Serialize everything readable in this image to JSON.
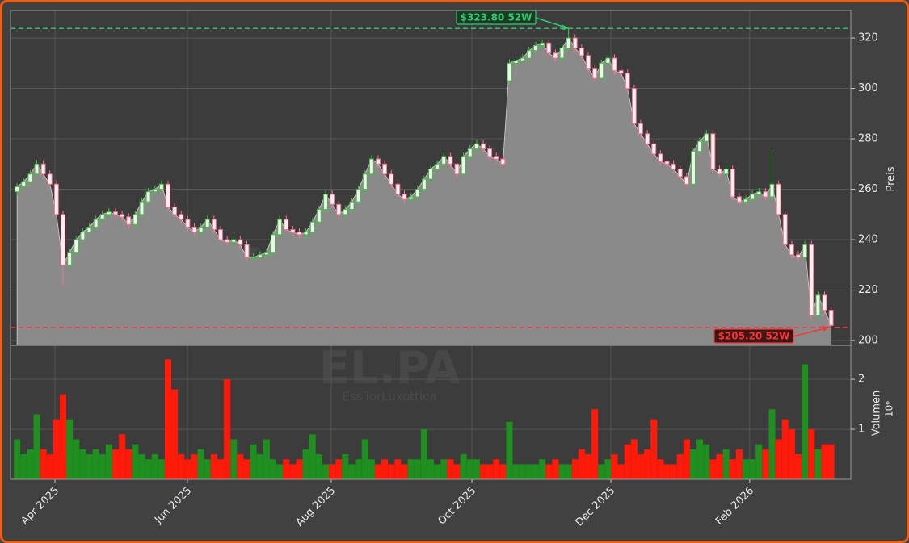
{
  "chart_data": {
    "type": "candlestick",
    "watermark": "forexsignale.trade",
    "ticker": "EL.PA",
    "company": "EssilorLuxottica",
    "ylabel": "Preis",
    "y2label": "Volumen",
    "y2_scale_label": "10⁶",
    "xlim": [
      -1,
      127
    ],
    "xticks": [
      {
        "value": 5.77,
        "label": "Apr 2025"
      },
      {
        "value": 25.95,
        "label": "Jun 2025"
      },
      {
        "value": 47.86,
        "label": "Aug 2025"
      },
      {
        "value": 69.28,
        "label": "Oct 2025"
      },
      {
        "value": 90.45,
        "label": "Dec 2025"
      },
      {
        "value": 111.6,
        "label": "Feb 2026"
      }
    ],
    "ylim": [
      198.1,
      330.9
    ],
    "yticks": [
      200,
      220,
      240,
      260,
      280,
      300,
      320
    ],
    "y2lim": [
      0,
      2.68
    ],
    "y2ticks": [
      1,
      2
    ],
    "grid": true,
    "up_color": "#3ec43e",
    "down_color": "#ff6f91",
    "volume_up_color": "#1f8f1f",
    "volume_down_color": "#ff1a0a",
    "area_color": "#8a8a8a",
    "annotations": [
      {
        "text": "$323.80 52W",
        "value": 323.8,
        "color": "#2ecc71"
      },
      {
        "text": "$205.20 52W",
        "value": 205.2,
        "color": "#ff3333"
      }
    ],
    "open": [
      259,
      261,
      263,
      266,
      270,
      266,
      262,
      250,
      230,
      235,
      240,
      243,
      245,
      248,
      250,
      251,
      250,
      249,
      246,
      250,
      255,
      259,
      260,
      262,
      253,
      250,
      248,
      245,
      243,
      245,
      248,
      244,
      240,
      239,
      240,
      238,
      233,
      233,
      234,
      235,
      242,
      248,
      244,
      243,
      242,
      243,
      247,
      252,
      258,
      254,
      250,
      252,
      255,
      260,
      266,
      272,
      270,
      266,
      262,
      258,
      256,
      257,
      260,
      264,
      268,
      270,
      273,
      270,
      266,
      273,
      276,
      278,
      276,
      273,
      272,
      303,
      310,
      311,
      312,
      315,
      317,
      318,
      314,
      312,
      316,
      320,
      316,
      313,
      308,
      304,
      310,
      312,
      307,
      306,
      300,
      286,
      282,
      278,
      274,
      271,
      270,
      268,
      265,
      262,
      275,
      279,
      282,
      268,
      266,
      268,
      257,
      255,
      256,
      258,
      259,
      257,
      262,
      250,
      238,
      234,
      233,
      238,
      210,
      218,
      212
    ],
    "high": [
      262.5,
      264.5,
      267.5,
      271.5,
      271.5,
      267.5,
      263.5,
      251.5,
      236.5,
      241.5,
      244.5,
      246.5,
      249.5,
      251.5,
      252.5,
      252.5,
      251.5,
      250.5,
      251.5,
      256.5,
      260.5,
      261.5,
      263.5,
      263.5,
      254.5,
      251.5,
      249.5,
      246.5,
      246.5,
      249.5,
      249.5,
      245.5,
      241.5,
      241.5,
      241.5,
      239.5,
      234.5,
      235.5,
      236.5,
      243.5,
      249.5,
      249.5,
      245.5,
      244.5,
      244.5,
      248.5,
      253.5,
      259.5,
      259.5,
      255.5,
      253.5,
      256.5,
      261.5,
      267.5,
      273.5,
      273.5,
      271.5,
      267.5,
      263.5,
      259.5,
      258.5,
      261.5,
      265.5,
      269.5,
      271.5,
      274.5,
      274.5,
      271.5,
      274.5,
      277.5,
      279.5,
      279.5,
      277.5,
      274.5,
      273.5,
      311.5,
      312.5,
      313.5,
      316.5,
      318.5,
      319.5,
      319.5,
      315.5,
      317.5,
      323.8,
      321.5,
      317.5,
      314.5,
      309.5,
      311.5,
      313.5,
      313.5,
      308.5,
      307.5,
      301.5,
      287.5,
      283.5,
      279.5,
      275.5,
      272.5,
      271.5,
      269.5,
      266.5,
      276.5,
      280.5,
      283.5,
      283.5,
      269.5,
      269.5,
      269.5,
      258.5,
      257.5,
      259.5,
      260.5,
      260.5,
      276,
      263.5,
      251.5,
      239.5,
      235.5,
      239.5,
      239.5,
      219.5,
      219.5,
      213.5
    ],
    "low": [
      257.5,
      259.5,
      261.5,
      264.5,
      264.5,
      260.5,
      248.5,
      222,
      228.5,
      233.5,
      238.5,
      241.5,
      243.5,
      246.5,
      248.5,
      248.5,
      247.5,
      244.5,
      244.5,
      248.5,
      253.5,
      257.5,
      258.5,
      251.5,
      248.5,
      246.5,
      243.5,
      241.5,
      241.5,
      243.5,
      242.5,
      238.5,
      237.5,
      237.5,
      236.5,
      231.5,
      231.5,
      231.5,
      232.5,
      233.5,
      240.5,
      242.5,
      241.5,
      240.5,
      240.5,
      241.5,
      245.5,
      250.5,
      252.5,
      248.5,
      248.5,
      250.5,
      253.5,
      258.5,
      264.5,
      268.5,
      264.5,
      260.5,
      256.5,
      254.5,
      254.5,
      255.5,
      258.5,
      262.5,
      266.5,
      268.5,
      268.5,
      264.5,
      264.5,
      271.5,
      274.5,
      274.5,
      271.5,
      270.5,
      268.5,
      301.5,
      308.5,
      309.5,
      310.5,
      313.5,
      315.5,
      312.5,
      310.5,
      310.5,
      314.5,
      314.5,
      311.5,
      306.5,
      302.5,
      302.5,
      308.5,
      305.5,
      304.5,
      298.5,
      284.5,
      280.5,
      276.5,
      272.5,
      269.5,
      268.5,
      266.5,
      263.5,
      260.5,
      260.5,
      273.5,
      277.5,
      266.5,
      264.5,
      264.5,
      255.5,
      253.5,
      253.5,
      254.5,
      256.5,
      255.5,
      255.5,
      248.5,
      236.5,
      232.5,
      231.5,
      231.5,
      208.5,
      208.5,
      210.5,
      205.2
    ],
    "close": [
      261,
      263,
      266,
      270,
      266,
      262,
      250,
      230,
      235,
      240,
      243,
      245,
      248,
      250,
      251,
      250,
      249,
      246,
      250,
      255,
      259,
      260,
      262,
      253,
      250,
      248,
      245,
      243,
      245,
      248,
      244,
      240,
      239,
      240,
      238,
      233,
      233,
      234,
      235,
      242,
      248,
      244,
      243,
      242,
      243,
      247,
      252,
      258,
      254,
      250,
      252,
      255,
      260,
      266,
      272,
      270,
      266,
      262,
      258,
      256,
      257,
      260,
      264,
      268,
      270,
      273,
      270,
      266,
      273,
      276,
      278,
      276,
      273,
      272,
      270,
      310,
      311,
      312,
      315,
      317,
      318,
      314,
      312,
      316,
      320,
      316,
      313,
      308,
      304,
      310,
      312,
      307,
      306,
      300,
      286,
      282,
      278,
      274,
      271,
      270,
      268,
      265,
      262,
      275,
      279,
      282,
      268,
      266,
      268,
      257,
      255,
      256,
      258,
      259,
      257,
      262,
      250,
      238,
      234,
      233,
      238,
      210,
      218,
      212,
      206
    ],
    "volume": [
      0.8,
      0.5,
      0.6,
      1.3,
      0.6,
      0.5,
      1.2,
      1.7,
      1.2,
      0.8,
      0.6,
      0.5,
      0.6,
      0.5,
      0.7,
      0.6,
      0.9,
      0.6,
      0.7,
      0.5,
      0.4,
      0.5,
      0.4,
      2.4,
      1.8,
      0.5,
      0.4,
      0.5,
      0.6,
      0.4,
      0.5,
      0.4,
      2.0,
      0.8,
      0.5,
      0.4,
      0.7,
      0.5,
      0.8,
      0.4,
      0.3,
      0.4,
      0.3,
      0.4,
      0.6,
      0.9,
      0.5,
      0.3,
      0.3,
      0.4,
      0.5,
      0.3,
      0.4,
      0.8,
      0.4,
      0.3,
      0.4,
      0.3,
      0.4,
      0.3,
      0.4,
      0.4,
      1.0,
      0.4,
      0.3,
      0.4,
      0.4,
      0.3,
      0.5,
      0.4,
      0.4,
      0.3,
      0.3,
      0.4,
      0.3,
      1.15,
      0.3,
      0.3,
      0.3,
      0.3,
      0.4,
      0.3,
      0.4,
      0.3,
      0.3,
      0.4,
      0.6,
      0.5,
      1.4,
      0.3,
      0.4,
      0.5,
      0.3,
      0.7,
      0.8,
      0.5,
      0.6,
      1.2,
      0.4,
      0.3,
      0.3,
      0.5,
      0.8,
      0.6,
      0.8,
      0.7,
      0.4,
      0.5,
      0.6,
      0.4,
      0.6,
      0.4,
      0.4,
      0.7,
      0.6,
      1.4,
      0.8,
      1.2,
      1.0,
      0.5,
      2.3,
      1.0,
      0.6,
      0.7,
      0.7
    ]
  }
}
